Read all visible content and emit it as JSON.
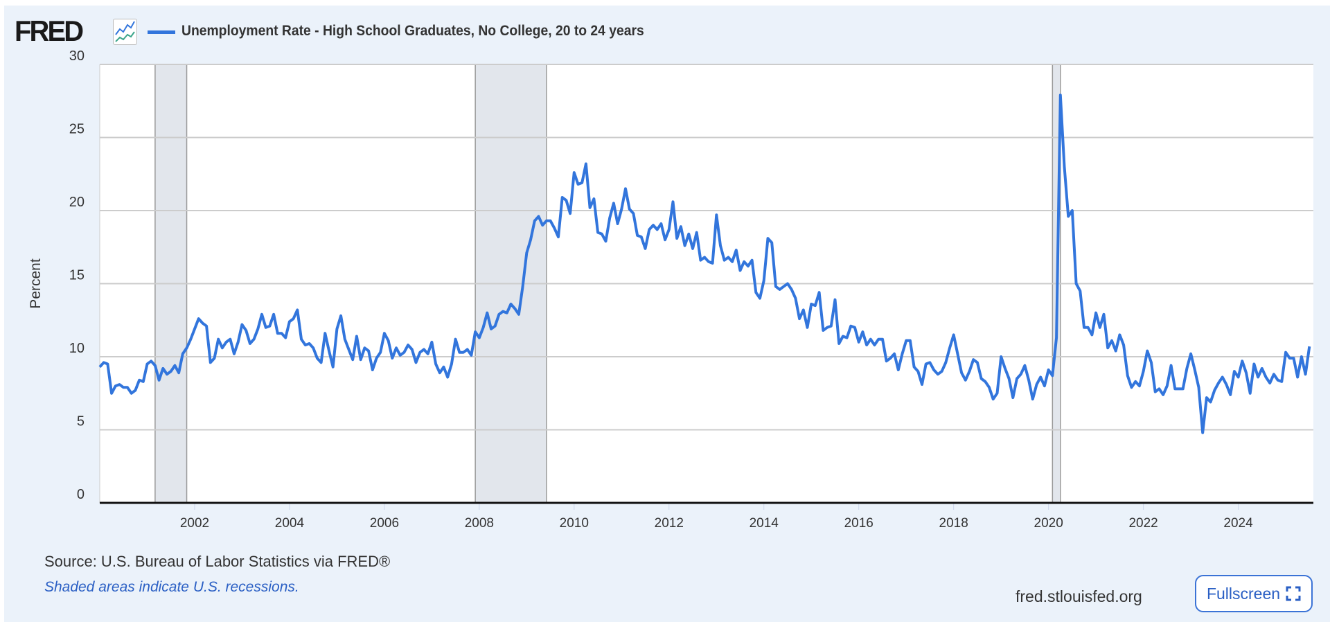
{
  "header": {
    "logo": "FRED",
    "series_title": "Unemployment Rate - High School Graduates, No College, 20 to 24 years"
  },
  "footer": {
    "source": "Source: U.S. Bureau of Labor Statistics via FRED®",
    "shaded_note": "Shaded areas indicate U.S. recessions.",
    "site": "fred.stlouisfed.org",
    "fullscreen_label": "Fullscreen"
  },
  "colors": {
    "line": "#3275dc",
    "recession": "#e2e6ec",
    "grid": "#cccccc",
    "background": "#ebf2fa"
  },
  "chart_data": {
    "type": "line",
    "title": "Unemployment Rate - High School Graduates, No College, 20 to 24 years",
    "xlabel": "",
    "ylabel": "Percent",
    "ylim": [
      0,
      30
    ],
    "yticks": [
      0,
      5,
      10,
      15,
      20,
      25,
      30
    ],
    "xticks": [
      "2002",
      "2004",
      "2006",
      "2008",
      "2010",
      "2012",
      "2014",
      "2016",
      "2018",
      "2020",
      "2022",
      "2024"
    ],
    "xlim": [
      "2000-01",
      "2025-08"
    ],
    "frequency": "monthly",
    "start": "2000-01",
    "grid": true,
    "recessions": [
      [
        "2001-03",
        "2001-11"
      ],
      [
        "2007-12",
        "2009-06"
      ],
      [
        "2020-02",
        "2020-04"
      ]
    ],
    "series": [
      {
        "name": "Unemployment Rate - High School Graduates, No College, 20 to 24 years",
        "values": [
          9.3,
          9.6,
          9.5,
          7.5,
          8.0,
          8.1,
          7.9,
          7.9,
          7.5,
          7.7,
          8.4,
          8.3,
          9.5,
          9.7,
          9.4,
          8.4,
          9.2,
          8.8,
          9.0,
          9.4,
          8.9,
          10.2,
          10.6,
          11.2,
          11.9,
          12.6,
          12.3,
          12.1,
          9.6,
          9.9,
          11.2,
          10.6,
          11.0,
          11.2,
          10.2,
          11.0,
          12.2,
          11.8,
          10.9,
          11.2,
          11.9,
          12.9,
          12.0,
          12.1,
          12.9,
          11.6,
          11.6,
          11.3,
          12.4,
          12.6,
          13.2,
          11.2,
          10.8,
          10.9,
          10.6,
          9.9,
          9.6,
          11.6,
          10.4,
          9.3,
          11.9,
          12.8,
          11.2,
          10.5,
          9.8,
          11.4,
          9.8,
          10.6,
          10.4,
          9.1,
          9.9,
          10.3,
          11.6,
          11.1,
          9.9,
          10.6,
          10.1,
          10.3,
          10.8,
          10.5,
          9.6,
          10.3,
          10.5,
          10.2,
          11.0,
          9.5,
          8.9,
          9.3,
          8.6,
          9.5,
          11.2,
          10.3,
          10.3,
          10.5,
          10.1,
          11.7,
          11.3,
          12.0,
          13.0,
          11.9,
          12.1,
          12.9,
          13.1,
          13.0,
          13.6,
          13.3,
          12.9,
          14.8,
          17.1,
          18.0,
          19.3,
          19.6,
          19.0,
          19.3,
          19.3,
          18.8,
          18.2,
          20.9,
          20.7,
          19.8,
          22.6,
          21.8,
          21.9,
          23.2,
          20.2,
          20.8,
          18.5,
          18.4,
          17.9,
          19.5,
          20.5,
          19.1,
          20.1,
          21.5,
          20.1,
          19.8,
          18.3,
          18.2,
          17.4,
          18.7,
          19.0,
          18.7,
          19.1,
          18.0,
          18.7,
          20.6,
          18.1,
          18.9,
          17.6,
          18.4,
          17.4,
          18.5,
          16.6,
          16.8,
          16.5,
          16.4,
          19.7,
          17.6,
          16.6,
          16.8,
          16.5,
          17.3,
          15.9,
          16.5,
          16.2,
          16.6,
          14.4,
          14.0,
          15.2,
          18.1,
          17.8,
          14.8,
          14.6,
          14.8,
          15.0,
          14.6,
          14.0,
          12.6,
          13.2,
          12.0,
          13.6,
          13.5,
          14.4,
          11.8,
          12.0,
          12.1,
          13.9,
          10.9,
          11.4,
          11.3,
          12.1,
          12.0,
          11.0,
          11.7,
          10.8,
          11.2,
          10.8,
          11.2,
          11.2,
          9.7,
          9.9,
          10.2,
          9.1,
          10.2,
          11.1,
          11.1,
          9.3,
          9.0,
          8.1,
          9.5,
          9.6,
          9.1,
          8.8,
          9.0,
          9.6,
          10.6,
          11.5,
          10.2,
          8.9,
          8.4,
          9.0,
          9.8,
          9.6,
          8.5,
          8.3,
          7.9,
          7.1,
          7.5,
          10.0,
          9.2,
          8.5,
          7.2,
          8.5,
          8.8,
          9.4,
          8.4,
          7.1,
          8.1,
          8.6,
          8.0,
          9.1,
          8.7,
          11.3,
          27.9,
          23.0,
          19.6,
          20.0,
          15.0,
          14.5,
          12.0,
          12.0,
          11.5,
          13.0,
          12.0,
          12.9,
          10.6,
          11.1,
          10.4,
          11.5,
          10.8,
          8.7,
          7.9,
          8.3,
          8.0,
          9.0,
          10.4,
          9.6,
          7.6,
          7.8,
          7.4,
          8.0,
          9.4,
          7.8,
          7.8,
          7.8,
          9.2,
          10.2,
          9.1,
          7.9,
          4.8,
          7.2,
          6.9,
          7.7,
          8.2,
          8.6,
          8.1,
          7.4,
          9.0,
          8.6,
          9.7,
          8.9,
          7.5,
          9.5,
          8.6,
          9.2,
          8.6,
          8.2,
          8.8,
          8.4,
          8.3,
          10.3,
          9.9,
          9.9,
          8.6,
          10.0,
          8.8,
          10.7
        ]
      }
    ]
  }
}
